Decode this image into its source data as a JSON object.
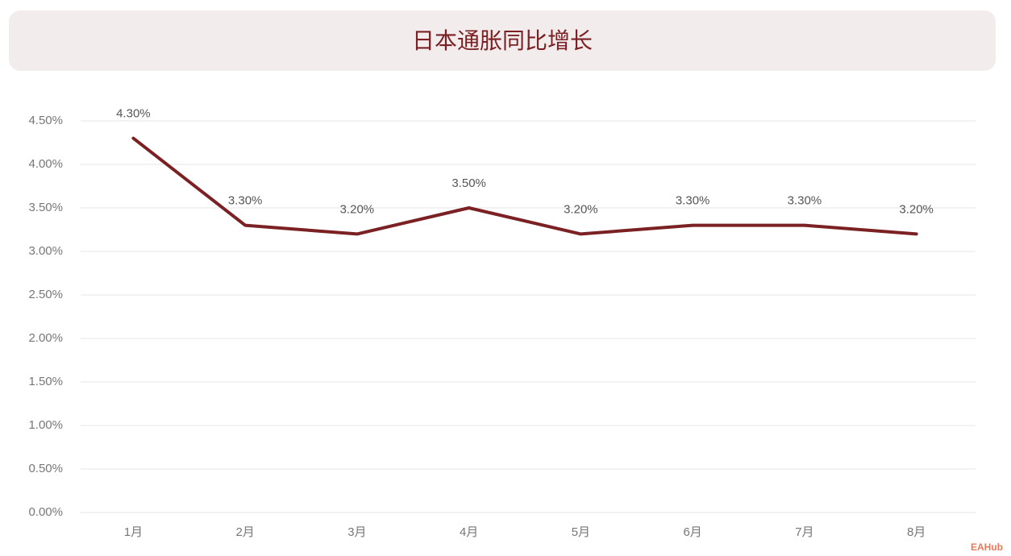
{
  "chart_data": {
    "type": "line",
    "title": "日本通胀同比增长",
    "categories": [
      "1月",
      "2月",
      "3月",
      "4月",
      "5月",
      "6月",
      "7月",
      "8月"
    ],
    "series": [
      {
        "name": "日本通胀同比增长",
        "color": "#7b2023",
        "values": [
          4.3,
          3.3,
          3.2,
          3.5,
          3.2,
          3.3,
          3.3,
          3.2
        ],
        "value_labels": [
          "4.30%",
          "3.30%",
          "3.20%",
          "3.50%",
          "3.20%",
          "3.30%",
          "3.30%",
          "3.20%"
        ]
      }
    ],
    "ylim": [
      0,
      4.5
    ],
    "yticks": [
      {
        "value": 0,
        "label": "0.00%"
      },
      {
        "value": 0.5,
        "label": "0.50%"
      },
      {
        "value": 1,
        "label": "1.00%"
      },
      {
        "value": 1.5,
        "label": "1.50%"
      },
      {
        "value": 2,
        "label": "2.00%"
      },
      {
        "value": 2.5,
        "label": "2.50%"
      },
      {
        "value": 3,
        "label": "3.00%"
      },
      {
        "value": 3.5,
        "label": "3.50%"
      },
      {
        "value": 4,
        "label": "4.00%"
      },
      {
        "value": 4.5,
        "label": "4.50%"
      }
    ],
    "grid": true,
    "watermark": "EAHub"
  }
}
